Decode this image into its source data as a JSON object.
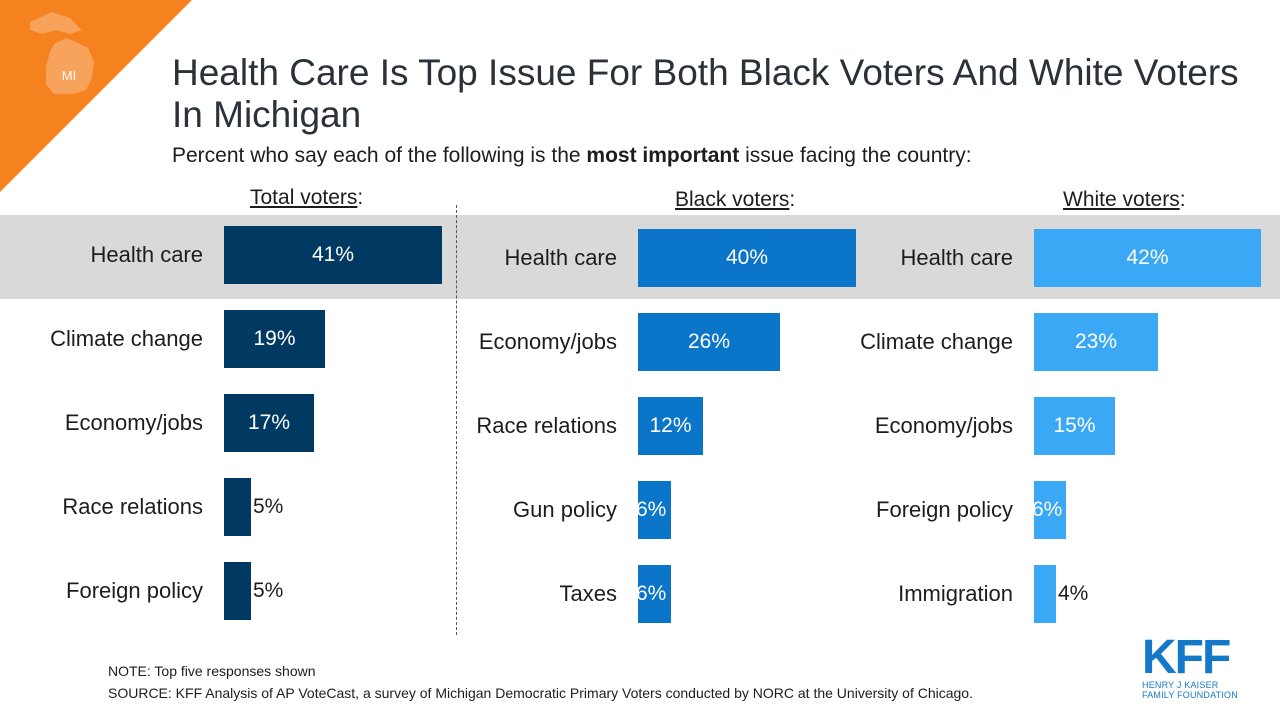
{
  "badge": {
    "label": "MI",
    "accent": "#f5821f"
  },
  "title": "Health Care Is Top Issue For Both Black Voters And White Voters In Michigan",
  "subtitle": {
    "pre": "Percent who say each of the following is the ",
    "bold": "most important",
    "post": " issue facing the country:"
  },
  "chart_data": [
    {
      "type": "bar",
      "title": "Total voters:",
      "color": "#003a63",
      "categories": [
        "Health care",
        "Climate change",
        "Economy/jobs",
        "Race relations",
        "Foreign policy"
      ],
      "values": [
        41,
        19,
        17,
        5,
        5
      ],
      "labels": [
        "41%",
        "19%",
        "17%",
        "5%",
        "5%"
      ]
    },
    {
      "type": "bar",
      "title": "Black voters:",
      "color": "#0a75c9",
      "categories": [
        "Health care",
        "Economy/jobs",
        "Race relations",
        "Gun policy",
        "Taxes"
      ],
      "values": [
        40,
        26,
        12,
        6,
        6
      ],
      "labels": [
        "40%",
        "26%",
        "12%",
        "6%",
        "6%"
      ]
    },
    {
      "type": "bar",
      "title": "White voters:",
      "color": "#3aa8f5",
      "categories": [
        "Health care",
        "Climate change",
        "Economy/jobs",
        "Foreign policy",
        "Immigration"
      ],
      "values": [
        42,
        23,
        15,
        6,
        4
      ],
      "labels": [
        "42%",
        "23%",
        "15%",
        "6%",
        "4%"
      ]
    }
  ],
  "note": "NOTE: Top five responses shown",
  "source": "SOURCE: KFF Analysis of AP VoteCast, a survey of Michigan Democratic Primary Voters conducted by NORC at the University of Chicago.",
  "logo": {
    "mark": "KFF",
    "line1": "HENRY J KAISER",
    "line2": "FAMILY FOUNDATION",
    "color": "#1479c9"
  }
}
